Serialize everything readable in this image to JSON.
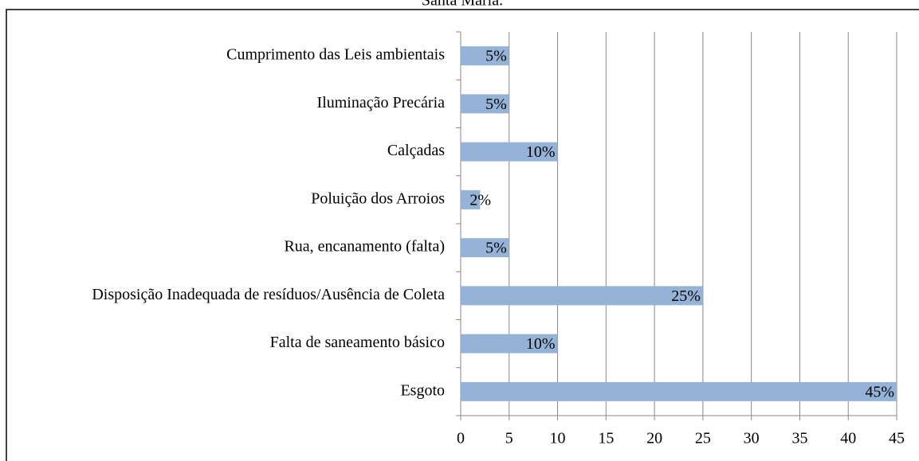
{
  "chart_data": {
    "type": "bar",
    "orientation": "horizontal",
    "title": "Santa Maria.",
    "categories": [
      "Cumprimento das Leis ambientais",
      "Iluminação Precária",
      "Calçadas ",
      "Poluição dos Arroios",
      "Rua, encanamento (falta)",
      "Disposição Inadequada de resíduos/Ausência de Coleta",
      "Falta de saneamento básico",
      "Esgoto"
    ],
    "values": [
      5,
      5,
      10,
      2,
      5,
      25,
      10,
      45
    ],
    "value_labels": [
      "5%",
      "5%",
      "10%",
      "2%",
      "5%",
      "25%",
      "10%",
      "45%"
    ],
    "color": "#95b3d7",
    "xlim": [
      0,
      45
    ],
    "xticks": [
      0,
      5,
      10,
      15,
      20,
      25,
      30,
      35,
      40,
      45
    ],
    "grid": true
  }
}
